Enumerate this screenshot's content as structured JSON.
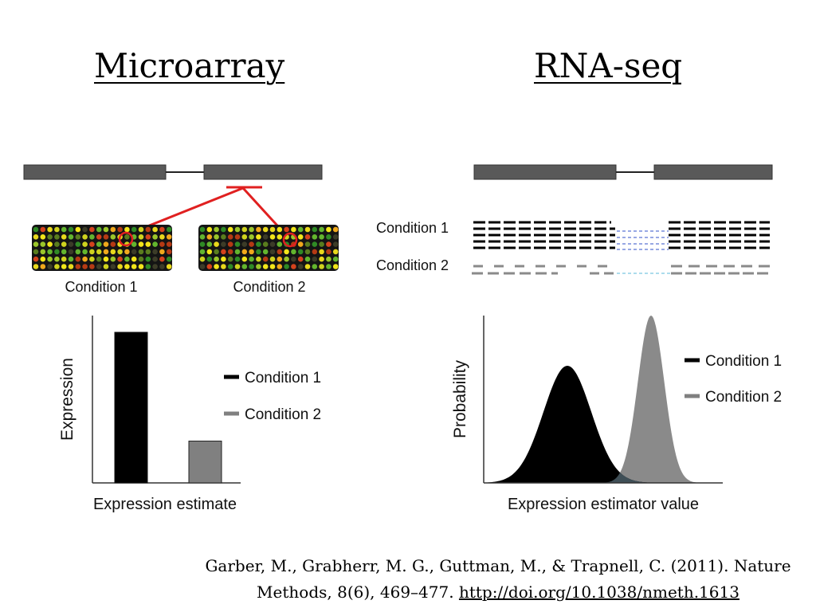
{
  "headings": {
    "microarray": "Microarray",
    "rnaseq": "RNA-seq"
  },
  "microarray": {
    "chip_labels": [
      "Condition 1",
      "Condition 2"
    ],
    "chart_ylabel": "Expression",
    "chart_xlabel": "Expression estimate",
    "legend": [
      "Condition 1",
      "Condition 2"
    ]
  },
  "rnaseq": {
    "read_labels": [
      "Condition 1",
      "Condition 2"
    ],
    "chart_ylabel": "Probability",
    "chart_xlabel": "Expression estimator value",
    "legend": [
      "Condition 1",
      "Condition 2"
    ]
  },
  "colors": {
    "condition1": "#000000",
    "condition2": "#808080",
    "exon": "#595959",
    "highlight": "#e02020"
  },
  "citation": {
    "text": "Garber, M., Grabherr, M. G., Guttman, M., & Trapnell, C. (2011). Nature Methods, 8(6), 469–477.",
    "link": "http://doi.org/10.1038/nmeth.1613"
  },
  "chart_data": [
    {
      "type": "bar",
      "categories": [
        "Condition 1",
        "Condition 2"
      ],
      "values": [
        0.9,
        0.25
      ],
      "xlabel": "Expression estimate",
      "ylabel": "Expression",
      "ylim": [
        0,
        1
      ],
      "legend_placement": "right"
    },
    {
      "type": "area",
      "series": [
        {
          "name": "Condition 1",
          "mean": 0.35,
          "sd": 0.1,
          "peak": 0.7
        },
        {
          "name": "Condition 2",
          "mean": 0.7,
          "sd": 0.055,
          "peak": 1.0
        }
      ],
      "xlabel": "Expression estimator value",
      "ylabel": "Probability",
      "xlim": [
        0,
        1
      ],
      "ylim": [
        0,
        1
      ],
      "legend_placement": "right"
    }
  ]
}
